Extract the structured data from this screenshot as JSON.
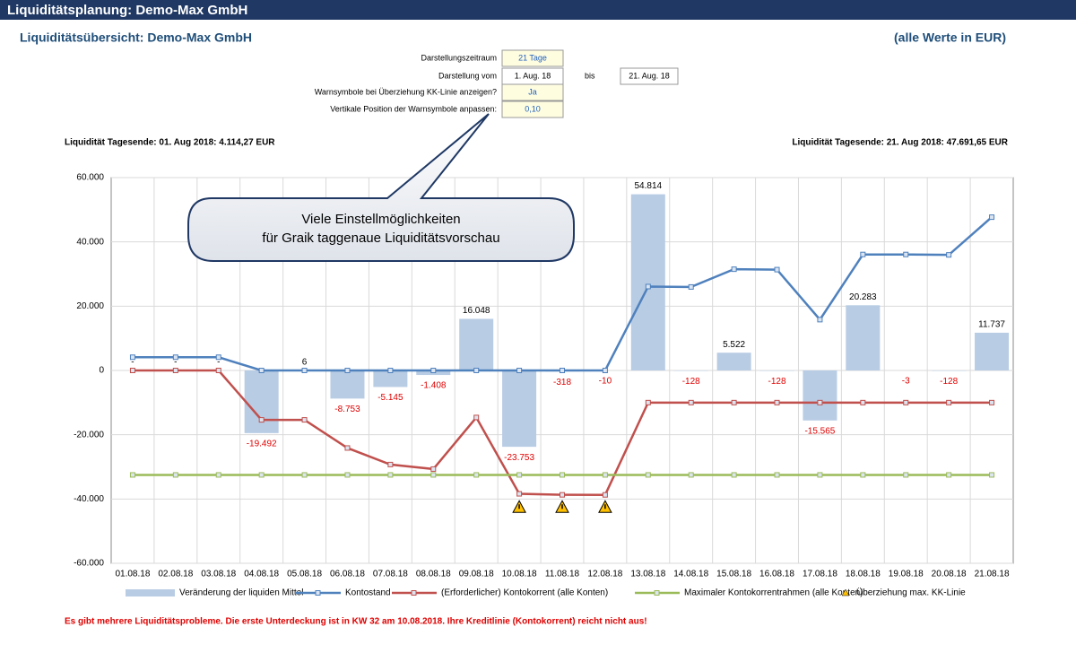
{
  "header": {
    "title": "Liquiditätsplanung: Demo-Max GmbH",
    "subtitle": "Liquiditätsübersicht: Demo-Max GmbH",
    "unit_note": "(alle Werte in EUR)"
  },
  "controls": [
    {
      "label": "Darstellungszeitraum",
      "value": "21 Tage"
    },
    {
      "label": "Darstellung vom",
      "value": "1. Aug. 18",
      "to_label": "bis",
      "to_value": "21. Aug. 18"
    },
    {
      "label": "Warnsymbole bei Überziehung KK-Linie anzeigen?",
      "value": "Ja"
    },
    {
      "label": "Vertikale Position der Warnsymbole anpassen:",
      "value": "0,10"
    }
  ],
  "summary": {
    "start": "Liquidität Tagesende: 01. Aug 2018: 4.114,27 EUR",
    "end": "Liquidität Tagesende: 21. Aug 2018: 47.691,65 EUR"
  },
  "callout": [
    "Viele Einstellmöglichkeiten",
    "für Graik taggenaue Liquiditätsvorschau"
  ],
  "chart_data": {
    "type": "combo",
    "categories": [
      "01.08.18",
      "02.08.18",
      "03.08.18",
      "04.08.18",
      "05.08.18",
      "06.08.18",
      "07.08.18",
      "08.08.18",
      "09.08.18",
      "10.08.18",
      "11.08.18",
      "12.08.18",
      "13.08.18",
      "14.08.18",
      "15.08.18",
      "16.08.18",
      "17.08.18",
      "18.08.18",
      "19.08.18",
      "20.08.18",
      "21.08.18"
    ],
    "series": [
      {
        "name": "Veränderung der liquiden Mittel",
        "type": "bar",
        "color": "#b8cce4",
        "values": [
          0,
          0,
          0,
          -19492,
          6,
          -8753,
          -5145,
          -1408,
          16048,
          -23753,
          -318,
          -10,
          54814,
          -128,
          5522,
          -128,
          -15565,
          20283,
          -3,
          -128,
          11737
        ],
        "value_labels": [
          "-",
          "-",
          "-",
          "-19.492",
          "6",
          "-8.753",
          "-5.145",
          "-1.408",
          "16.048",
          "-23.753",
          "-318",
          "-10",
          "54.814",
          "-128",
          "5.522",
          "-128",
          "-15.565",
          "20.283",
          "-3",
          "-128",
          "11.737"
        ]
      },
      {
        "name": "Kontostand",
        "type": "line",
        "color": "#4f81bd",
        "values": [
          4114,
          4114,
          4114,
          0,
          0,
          0,
          0,
          0,
          0,
          0,
          0,
          0,
          26103,
          25975,
          31497,
          31369,
          15804,
          36087,
          36084,
          35956,
          47692
        ]
      },
      {
        "name": "(Erforderlicher) Kontokorrent (alle Konten)",
        "type": "line",
        "color": "#c0504d",
        "values": [
          0,
          0,
          0,
          -15378,
          -15372,
          -24125,
          -29270,
          -30678,
          -14630,
          -38383,
          -38701,
          -38711,
          -10000,
          -10000,
          -10000,
          -10000,
          -10000,
          -10000,
          -10000,
          -10000,
          -10000
        ]
      },
      {
        "name": "Maximaler Kontokorrentrahmen (alle Konten)",
        "type": "line",
        "color": "#9bbb59",
        "values": [
          -32500,
          -32500,
          -32500,
          -32500,
          -32500,
          -32500,
          -32500,
          -32500,
          -32500,
          -32500,
          -32500,
          -32500,
          -32500,
          -32500,
          -32500,
          -32500,
          -32500,
          -32500,
          -32500,
          -32500,
          -32500
        ]
      },
      {
        "name": "Überziehung max. KK-Linie",
        "type": "marker",
        "color": "#ffc000",
        "values": [
          null,
          null,
          null,
          null,
          null,
          null,
          null,
          null,
          null,
          -42500,
          -42500,
          -42500,
          null,
          null,
          null,
          null,
          null,
          null,
          null,
          null,
          null
        ]
      }
    ],
    "ylim": [
      -60000,
      60000
    ],
    "yticks": [
      {
        "value": -60000,
        "label": "-60.000"
      },
      {
        "value": -40000,
        "label": "-40.000"
      },
      {
        "value": -20000,
        "label": "-20.000"
      },
      0,
      {
        "value": 20000,
        "label": "20.000"
      },
      {
        "value": 40000,
        "label": "40.000"
      },
      {
        "value": 60000,
        "label": "60.000"
      }
    ],
    "grid": true
  },
  "warning": "Es gibt mehrere Liquiditätsprobleme. Die erste Unterdeckung ist in KW 32 am 10.08.2018. Ihre Kreditlinie (Kontokorrent) reicht nicht aus!"
}
